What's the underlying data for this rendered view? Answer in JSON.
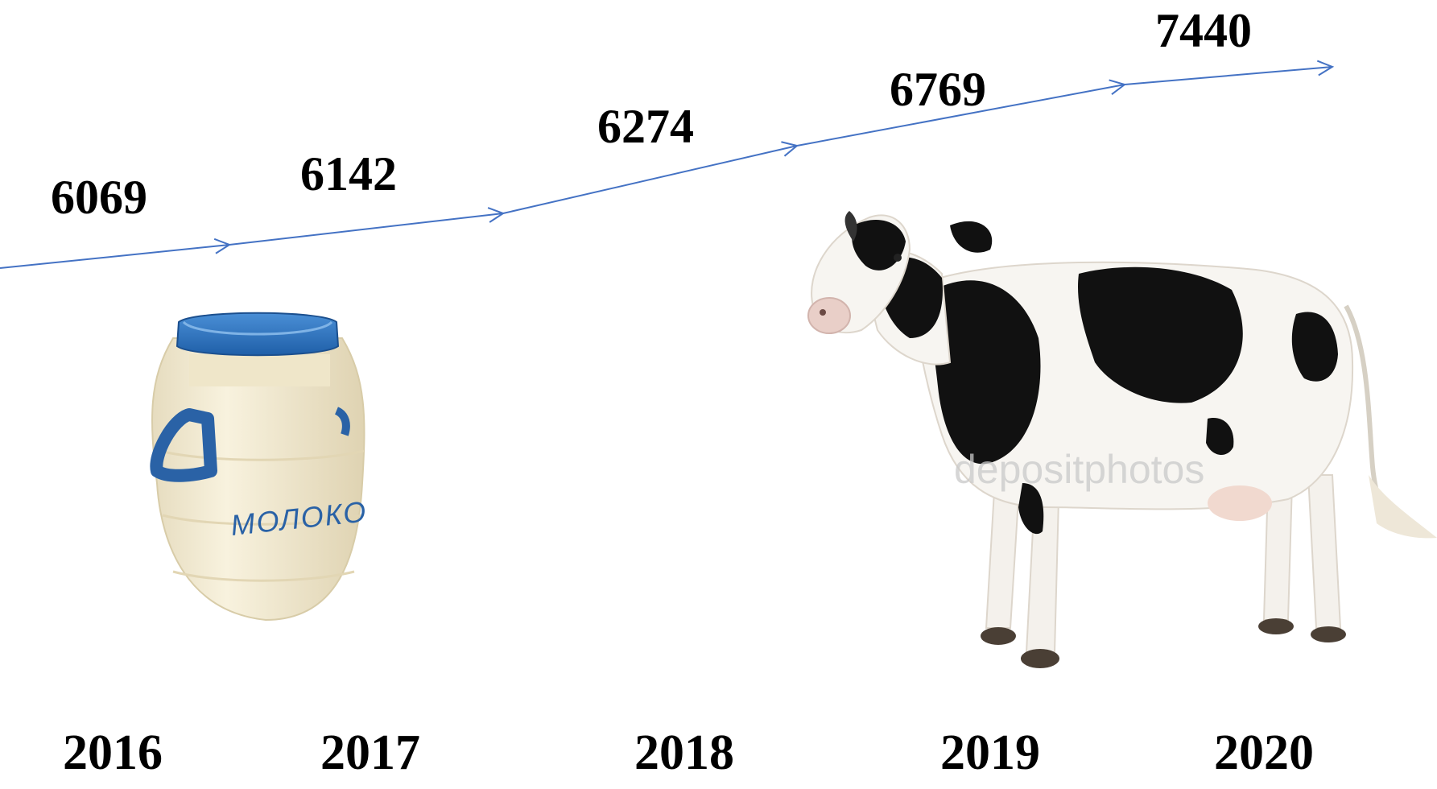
{
  "chart_data": {
    "type": "line",
    "x": [
      "2016",
      "2017",
      "2018",
      "2019",
      "2020"
    ],
    "values": [
      6069,
      6142,
      6274,
      6769,
      7440
    ],
    "value_labels": [
      "6069",
      "6142",
      "6274",
      "6769",
      "7440"
    ],
    "title": "",
    "xlabel": "",
    "ylabel": "",
    "line_color": "#4472c4",
    "marker": "arrowhead"
  },
  "illustrations": {
    "milk_can_label": "МОЛОКО",
    "watermark": "depositphotos",
    "can_lid_color": "#2f73b8",
    "can_body_color": "#f3ead0"
  }
}
